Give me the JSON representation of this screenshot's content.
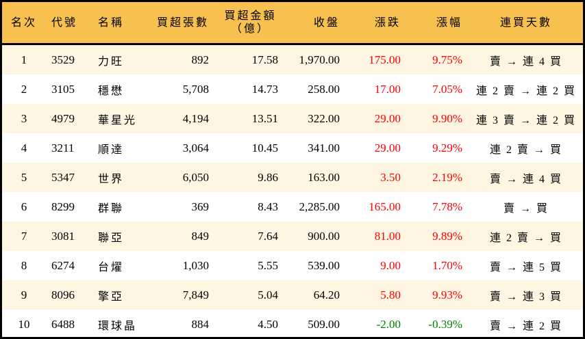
{
  "headers": {
    "rank": "名次",
    "code": "代號",
    "name": "名稱",
    "net_buy_shares": "買超張數",
    "net_buy_amount": "買超金額",
    "net_buy_amount_unit": "（億）",
    "close": "收盤",
    "change": "漲跌",
    "change_pct": "漲幅",
    "streak": "連買天數"
  },
  "colors": {
    "header_bg": "#F8C14F",
    "odd_row_bg": "#FEF6E3",
    "up": "#FF0000",
    "down": "#008000"
  },
  "rows": [
    {
      "rank": "1",
      "code": "3529",
      "name": "力旺",
      "shares": "892",
      "amount": "17.58",
      "close": "1,970.00",
      "change": "175.00",
      "pct": "9.75%",
      "streak": "賣 → 連 4 買",
      "dir": "up"
    },
    {
      "rank": "2",
      "code": "3105",
      "name": "穩懋",
      "shares": "5,708",
      "amount": "14.73",
      "close": "258.00",
      "change": "17.00",
      "pct": "7.05%",
      "streak": "連 2 賣 → 連 2 買",
      "dir": "up"
    },
    {
      "rank": "3",
      "code": "4979",
      "name": "華星光",
      "shares": "4,194",
      "amount": "13.51",
      "close": "322.00",
      "change": "29.00",
      "pct": "9.90%",
      "streak": "連 3 賣 → 連 2 買",
      "dir": "up"
    },
    {
      "rank": "4",
      "code": "3211",
      "name": "順達",
      "shares": "3,064",
      "amount": "10.45",
      "close": "341.00",
      "change": "29.00",
      "pct": "9.29%",
      "streak": "連 2 賣 → 買",
      "dir": "up"
    },
    {
      "rank": "5",
      "code": "5347",
      "name": "世界",
      "shares": "6,050",
      "amount": "9.86",
      "close": "163.00",
      "change": "3.50",
      "pct": "2.19%",
      "streak": "賣 → 連 4 買",
      "dir": "up"
    },
    {
      "rank": "6",
      "code": "8299",
      "name": "群聯",
      "shares": "369",
      "amount": "8.43",
      "close": "2,285.00",
      "change": "165.00",
      "pct": "7.78%",
      "streak": "賣 → 買",
      "dir": "up"
    },
    {
      "rank": "7",
      "code": "3081",
      "name": "聯亞",
      "shares": "849",
      "amount": "7.64",
      "close": "900.00",
      "change": "81.00",
      "pct": "9.89%",
      "streak": "連 2 賣 → 買",
      "dir": "up"
    },
    {
      "rank": "8",
      "code": "6274",
      "name": "台燿",
      "shares": "1,030",
      "amount": "5.55",
      "close": "539.00",
      "change": "9.00",
      "pct": "1.70%",
      "streak": "賣 → 連 5 買",
      "dir": "up"
    },
    {
      "rank": "9",
      "code": "8096",
      "name": "擎亞",
      "shares": "7,849",
      "amount": "5.04",
      "close": "64.20",
      "change": "5.80",
      "pct": "9.93%",
      "streak": "賣 → 連 3 買",
      "dir": "up"
    },
    {
      "rank": "10",
      "code": "6488",
      "name": "環球晶",
      "shares": "884",
      "amount": "4.50",
      "close": "509.00",
      "change": "-2.00",
      "pct": "-0.39%",
      "streak": "賣 → 連 2 買",
      "dir": "down"
    }
  ]
}
